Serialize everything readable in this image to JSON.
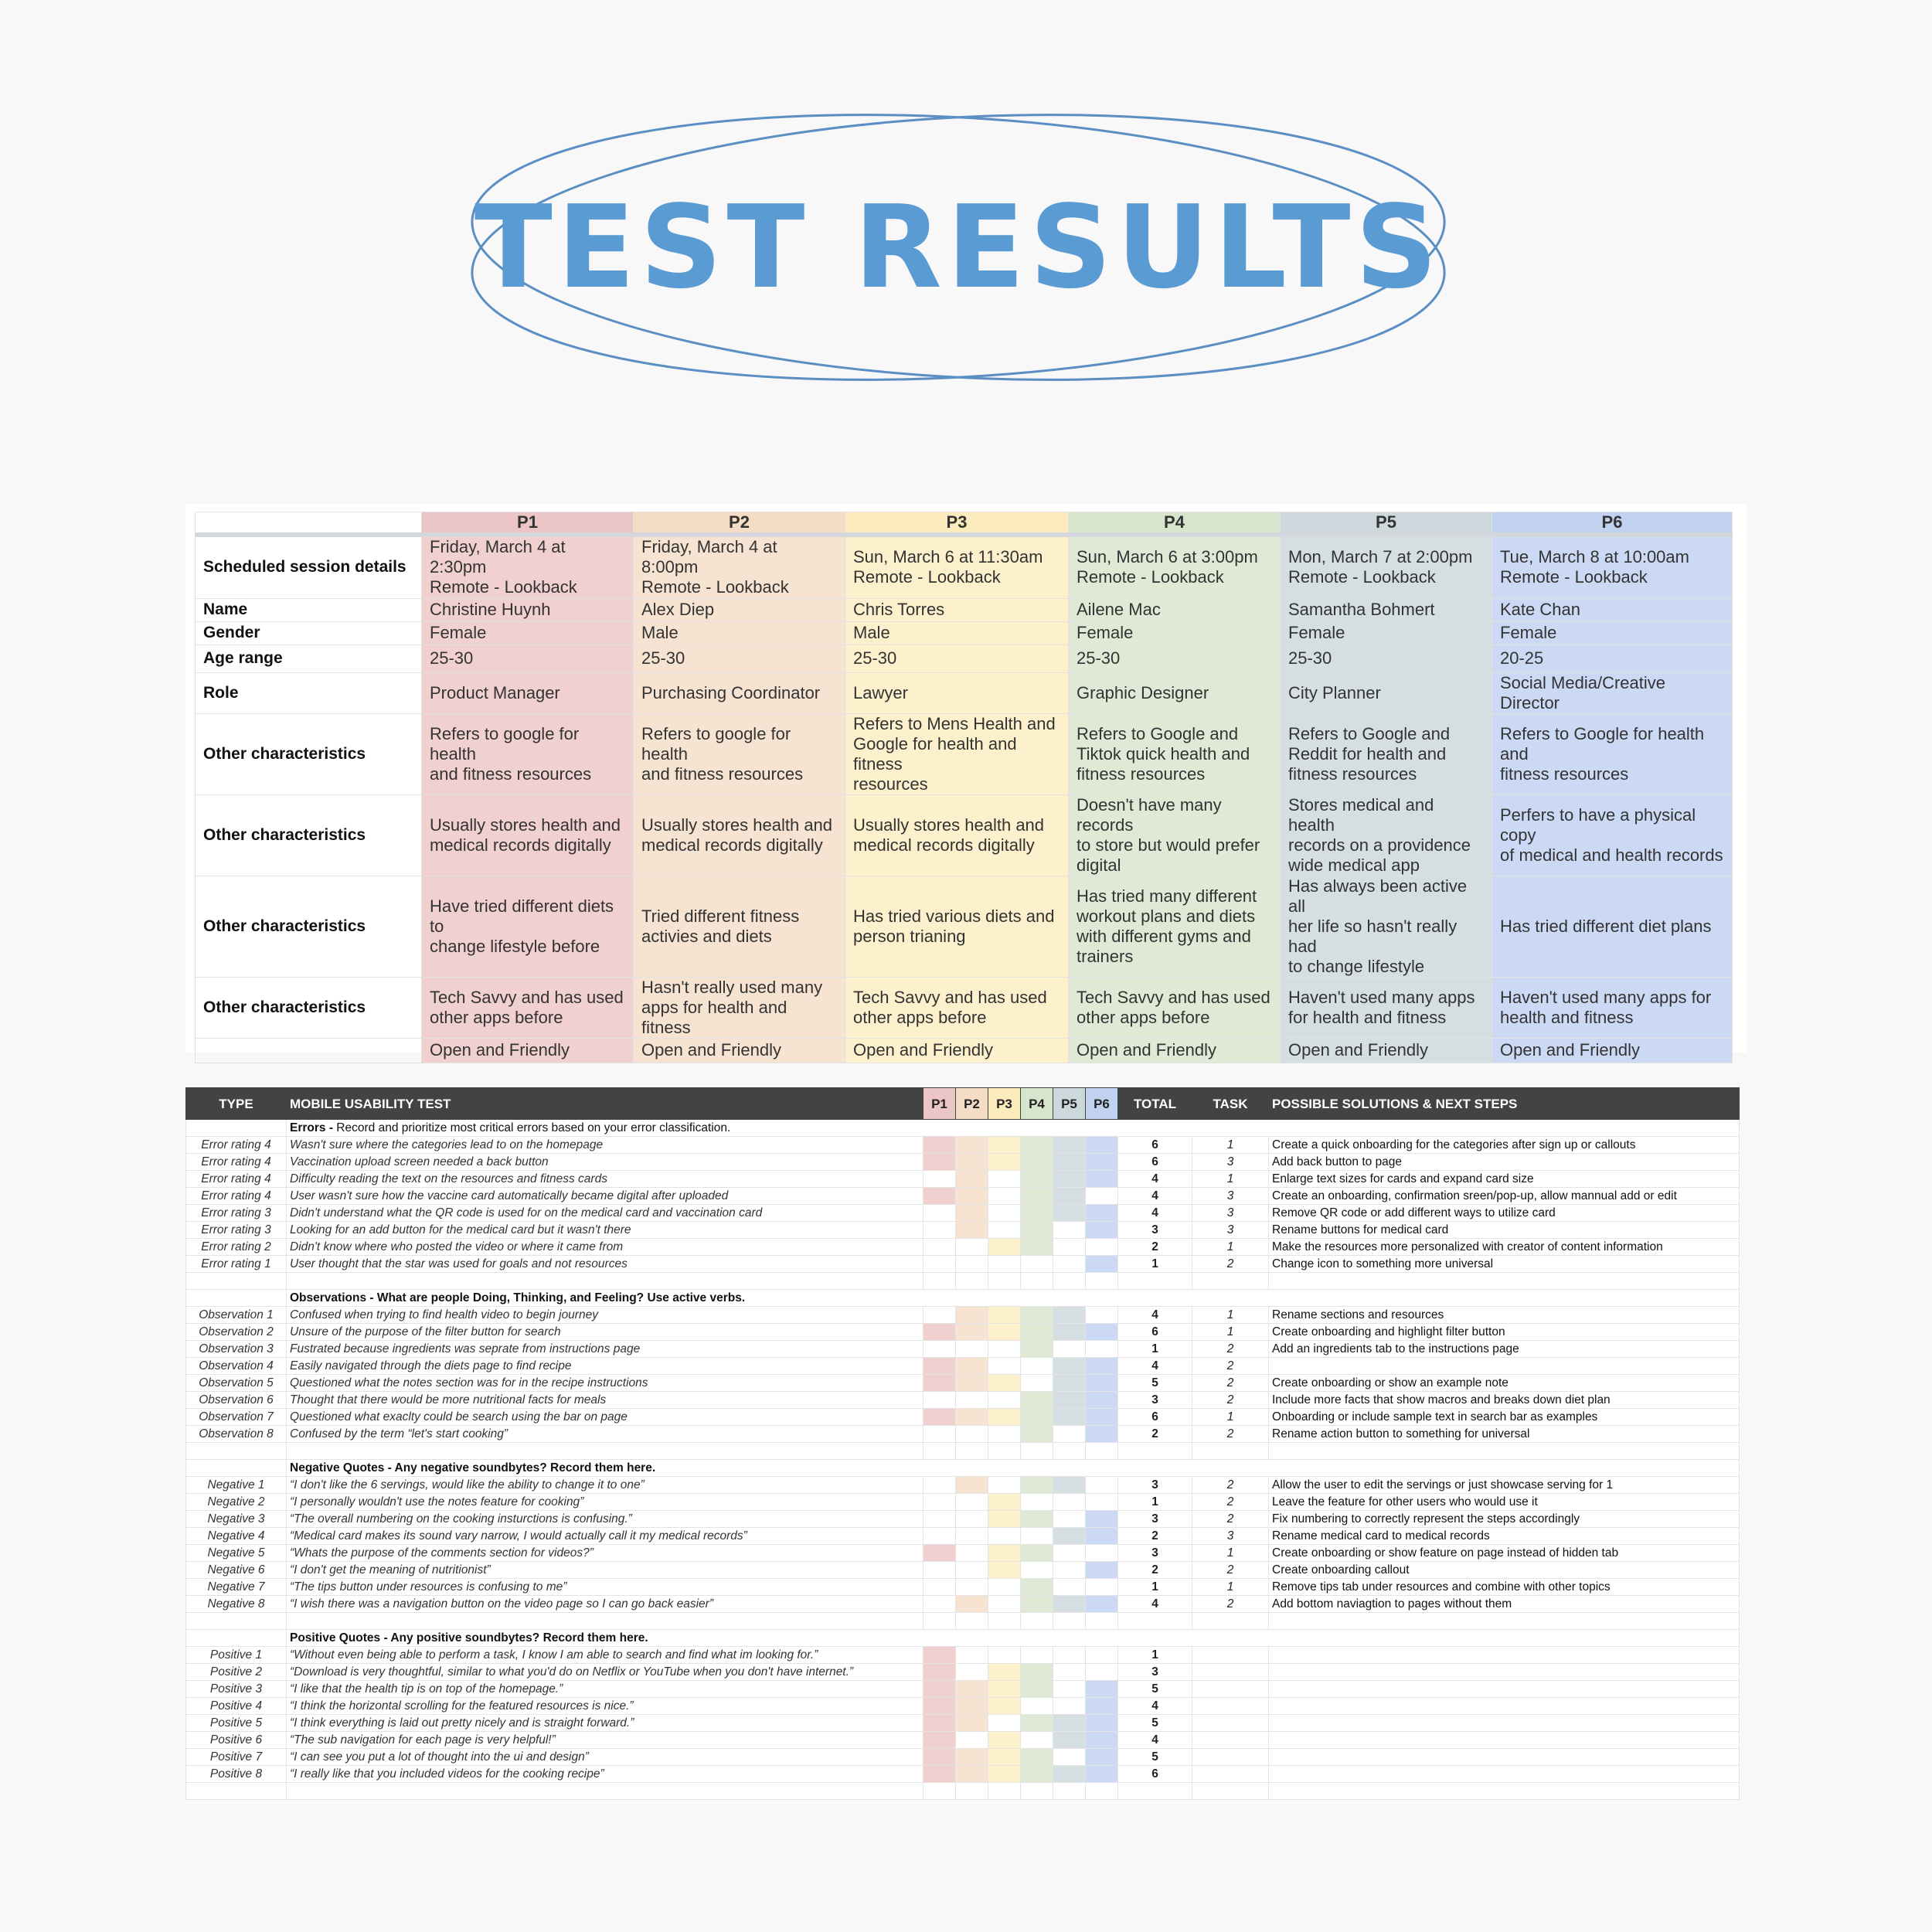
{
  "title": "TEST RESULTS",
  "colors": {
    "title": "#5b9bd3",
    "p1": "#f1d0d0",
    "p2": "#f7e3d1",
    "p3": "#fdf0cc",
    "p4": "#dfe9d6",
    "p5": "#d5dfe2",
    "p6": "#ccd9f4"
  },
  "participants": {
    "headers": [
      "P1",
      "P2",
      "P3",
      "P4",
      "P5",
      "P6"
    ],
    "rows": [
      {
        "label": "Scheduled session details",
        "cells": [
          [
            "Friday, March 4 at 2:30pm",
            "Remote - Lookback"
          ],
          [
            "Friday, March 4 at 8:00pm",
            "Remote - Lookback"
          ],
          [
            "Sun, March 6 at 11:30am",
            "Remote - Lookback"
          ],
          [
            "Sun, March 6  at 3:00pm",
            "Remote - Lookback"
          ],
          [
            "Mon, March 7 at 2:00pm",
            "Remote - Lookback"
          ],
          [
            "Tue, March 8 at 10:00am",
            "Remote - Lookback"
          ]
        ]
      },
      {
        "label": "Name",
        "cells": [
          [
            "Christine Huynh"
          ],
          [
            "Alex Diep"
          ],
          [
            "Chris Torres"
          ],
          [
            "Ailene Mac"
          ],
          [
            "Samantha Bohmert"
          ],
          [
            "Kate Chan"
          ]
        ]
      },
      {
        "label": "Gender",
        "cells": [
          [
            "Female"
          ],
          [
            "Male"
          ],
          [
            "Male"
          ],
          [
            "Female"
          ],
          [
            "Female"
          ],
          [
            "Female"
          ]
        ]
      },
      {
        "label": "Age range",
        "cells": [
          [
            "25-30"
          ],
          [
            "25-30"
          ],
          [
            "25-30"
          ],
          [
            "25-30"
          ],
          [
            "25-30"
          ],
          [
            "20-25"
          ]
        ]
      },
      {
        "label": "Role",
        "cells": [
          [
            "Product Manager"
          ],
          [
            "Purchasing Coordinator"
          ],
          [
            "Lawyer"
          ],
          [
            "Graphic Designer"
          ],
          [
            "City Planner"
          ],
          [
            "Social Media/Creative Director"
          ]
        ]
      },
      {
        "label": "Other characteristics",
        "cells": [
          [
            "Refers to google for health",
            "and fitness resources"
          ],
          [
            "Refers to google for health",
            "and fitness resources"
          ],
          [
            "Refers to Mens Health and",
            "Google for health and fitness",
            "resources"
          ],
          [
            "Refers to Google and",
            "Tiktok quick health and",
            "fitness resources"
          ],
          [
            "Refers to Google and",
            "Reddit for health and",
            "fitness resources"
          ],
          [
            "Refers to Google for health and",
            "fitness resources"
          ]
        ]
      },
      {
        "label": "Other characteristics",
        "cells": [
          [
            "Usually stores health and",
            "medical records digitally"
          ],
          [
            "Usually stores health and",
            "medical records digitally"
          ],
          [
            "Usually stores health and",
            "medical records digitally"
          ],
          [
            "Doesn't have many records",
            "to store but would prefer",
            "digital"
          ],
          [
            "Stores medical and health",
            "records on a providence",
            "wide medical app"
          ],
          [
            "Perfers to have a physical copy",
            "of medical and health records"
          ]
        ]
      },
      {
        "label": "Other characteristics",
        "cells": [
          [
            "Have tried different diets to",
            "change lifestyle before"
          ],
          [
            "Tried different fitness",
            "activies and diets"
          ],
          [
            "Has tried various diets and",
            "person trianing"
          ],
          [
            "Has tried many different",
            "workout plans and diets",
            "with different gyms and",
            "trainers"
          ],
          [
            "Has always been active all",
            "her life so hasn't really had",
            "to change lifestyle"
          ],
          [
            "Has tried different diet plans"
          ]
        ]
      },
      {
        "label": "Other characteristics",
        "cells": [
          [
            "Tech Savvy and has used",
            "other apps before"
          ],
          [
            "Hasn't really used many",
            "apps for health and fitness"
          ],
          [
            "Tech Savvy and has used",
            "other apps before"
          ],
          [
            "Tech Savvy and has used",
            "other apps before"
          ],
          [
            "Haven't used many apps",
            "for health and fitness"
          ],
          [
            "Haven't used many apps for",
            "health and fitness"
          ]
        ]
      },
      {
        "label": "",
        "cells": [
          [
            "Open and Friendly"
          ],
          [
            "Open and Friendly"
          ],
          [
            "Open and Friendly"
          ],
          [
            "Open and Friendly"
          ],
          [
            "Open and Friendly"
          ],
          [
            "Open and Friendly"
          ]
        ]
      }
    ]
  },
  "usability": {
    "headers": {
      "type": "TYPE",
      "test": "MOBILE USABILITY TEST",
      "p": [
        "P1",
        "P2",
        "P3",
        "P4",
        "P5",
        "P6"
      ],
      "total": "TOTAL",
      "task": "TASK",
      "solutions": "POSSIBLE SOLUTIONS & NEXT STEPS"
    },
    "sections": [
      {
        "title": "Errors -",
        "note": " Record and prioritize most critical errors based on your error classification.",
        "rows": [
          {
            "type": "Error rating 4",
            "desc": "Wasn't sure where the categories lead to on the homepage",
            "p": [
              1,
              1,
              1,
              1,
              1,
              1
            ],
            "total": "6",
            "task": "1",
            "sol": "Create a quick onboarding for the categories after sign up or callouts"
          },
          {
            "type": "Error rating 4",
            "desc": "Vaccination upload screen needed a back button",
            "p": [
              1,
              1,
              1,
              1,
              1,
              1
            ],
            "total": "6",
            "task": "3",
            "sol": "Add back button to page"
          },
          {
            "type": "Error rating 4",
            "desc": "Difficulty reading the text on the resources and fitness cards",
            "p": [
              0,
              1,
              0,
              1,
              1,
              1
            ],
            "total": "4",
            "task": "1",
            "sol": "Enlarge text sizes for cards and expand card size"
          },
          {
            "type": "Error rating 4",
            "desc": "User wasn't sure how the vaccine card automatically became digital after uploaded",
            "p": [
              1,
              1,
              0,
              1,
              1,
              0
            ],
            "total": "4",
            "task": "3",
            "sol": "Create an onboarding, confirmation sreen/pop-up, allow mannual add or edit"
          },
          {
            "type": "Error rating 3",
            "desc": "Didn't understand what the QR code is used for on the medical card and vaccination card",
            "p": [
              0,
              1,
              0,
              1,
              1,
              1
            ],
            "total": "4",
            "task": "3",
            "sol": "Remove QR code or add different ways to utilize card"
          },
          {
            "type": "Error rating 3",
            "desc": "Looking for an add button for the medical card but it wasn't there",
            "p": [
              0,
              1,
              0,
              1,
              0,
              1
            ],
            "total": "3",
            "task": "3",
            "sol": "Rename buttons for medical card"
          },
          {
            "type": "Error rating 2",
            "desc": "Didn't know where who posted the video or where it came from",
            "p": [
              0,
              0,
              1,
              1,
              0,
              0
            ],
            "total": "2",
            "task": "1",
            "sol": "Make the resources more personalized with creator of content information"
          },
          {
            "type": "Error rating 1",
            "desc": "User thought that the star was used for goals and not resources",
            "p": [
              0,
              0,
              0,
              0,
              0,
              1
            ],
            "total": "1",
            "task": "2",
            "sol": "Change icon to something more universal"
          }
        ]
      },
      {
        "title": "Observations - What are people Doing, Thinking, and Feeling? Use active verbs.",
        "note": "",
        "rows": [
          {
            "type": "Observation 1",
            "desc": "Confused when trying to find health video to begin journey",
            "p": [
              0,
              1,
              1,
              1,
              1,
              0
            ],
            "total": "4",
            "task": "1",
            "sol": "Rename sections and resources"
          },
          {
            "type": "Observation 2",
            "desc": "Unsure of the purpose of the filter button for search",
            "p": [
              1,
              1,
              1,
              1,
              1,
              1
            ],
            "total": "6",
            "task": "1",
            "sol": "Create onboarding and highlight filter button"
          },
          {
            "type": "Observation 3",
            "desc": "Fustrated because ingredients was seprate from instructions page",
            "p": [
              0,
              0,
              0,
              1,
              0,
              0
            ],
            "total": "1",
            "task": "2",
            "sol": "Add an ingredients tab to the instructions page"
          },
          {
            "type": "Observation 4",
            "desc": "Easily navigated through the diets page to find recipe",
            "p": [
              1,
              1,
              0,
              0,
              1,
              1
            ],
            "total": "4",
            "task": "2",
            "sol": ""
          },
          {
            "type": "Observation 5",
            "desc": "Questioned what the notes section was for in the recipe instructions",
            "p": [
              1,
              1,
              1,
              0,
              1,
              1
            ],
            "total": "5",
            "task": "2",
            "sol": "Create onboarding or show an example note"
          },
          {
            "type": "Observation 6",
            "desc": "Thought that there would be more nutritional facts for meals",
            "p": [
              0,
              0,
              0,
              1,
              1,
              1
            ],
            "total": "3",
            "task": "2",
            "sol": "Include more facts that show macros and breaks down diet plan"
          },
          {
            "type": "Observation 7",
            "desc": "Questioned what exaclty could be search using the bar on page",
            "p": [
              1,
              1,
              1,
              1,
              1,
              1
            ],
            "total": "6",
            "task": "1",
            "sol": "Onboarding or include sample text in search bar as examples"
          },
          {
            "type": "Observation 8",
            "desc": "Confused by the term “let's start cooking”",
            "p": [
              0,
              0,
              0,
              1,
              0,
              1
            ],
            "total": "2",
            "task": "2",
            "sol": "Rename action button to something for universal"
          }
        ]
      },
      {
        "title": "Negative Quotes - Any negative soundbytes? Record them here.",
        "note": "",
        "rows": [
          {
            "type": "Negative 1",
            "desc": "“I don't like the 6 servings, would like the ability to change it to one”",
            "p": [
              0,
              1,
              0,
              1,
              1,
              0
            ],
            "total": "3",
            "task": "2",
            "sol": "Allow the user to edit the servings or just showcase serving for 1"
          },
          {
            "type": "Negative 2",
            "desc": "“I personally wouldn't use the notes feature for cooking”",
            "p": [
              0,
              0,
              1,
              0,
              0,
              0
            ],
            "total": "1",
            "task": "2",
            "sol": "Leave the feature for other users who would use it"
          },
          {
            "type": "Negative 3",
            "desc": "“The overall numbering on the cooking insturctions is confusing.”",
            "p": [
              0,
              0,
              1,
              1,
              0,
              1
            ],
            "total": "3",
            "task": "2",
            "sol": "Fix numbering to correctly represent the steps accordingly"
          },
          {
            "type": "Negative 4",
            "desc": "“Medical card makes its sound vary narrow, I would actually call it my medical records”",
            "p": [
              0,
              0,
              0,
              0,
              1,
              1
            ],
            "total": "2",
            "task": "3",
            "sol": "Rename medical card to medical records"
          },
          {
            "type": "Negative 5",
            "desc": "“Whats the purpose of the comments section for videos?”",
            "p": [
              1,
              0,
              1,
              1,
              0,
              0
            ],
            "total": "3",
            "task": "1",
            "sol": "Create onboarding or show feature on page instead of hidden tab"
          },
          {
            "type": "Negative 6",
            "desc": "“I don't get the meaning of nutritionist”",
            "p": [
              0,
              0,
              1,
              0,
              0,
              1
            ],
            "total": "2",
            "task": "2",
            "sol": "Create onboarding callout"
          },
          {
            "type": "Negative 7",
            "desc": "“The tips button under resources is confusing to me”",
            "p": [
              0,
              0,
              0,
              1,
              0,
              0
            ],
            "total": "1",
            "task": "1",
            "sol": "Remove tips tab under resources and combine with other topics"
          },
          {
            "type": "Negative 8",
            "desc": "“I wish there was a navigation button on the video page so I can go back easier”",
            "p": [
              0,
              1,
              0,
              1,
              1,
              1
            ],
            "total": "4",
            "task": "2",
            "sol": "Add bottom naviagtion to pages without them"
          }
        ]
      },
      {
        "title": "Positive Quotes - Any positive soundbytes? Record them here.",
        "note": "",
        "rows": [
          {
            "type": "Positive 1",
            "desc": "“Without even being able to perform a task, I know I am able to search and find what im looking for.”",
            "p": [
              1,
              0,
              0,
              0,
              0,
              0
            ],
            "total": "1",
            "task": "",
            "sol": ""
          },
          {
            "type": "Positive 2",
            "desc": "“Download is very thoughtful, similar to what you'd do on Netflix or YouTube when you don't have internet.”",
            "p": [
              1,
              0,
              1,
              1,
              0,
              0
            ],
            "total": "3",
            "task": "",
            "sol": ""
          },
          {
            "type": "Positive 3",
            "desc": "“I like that the health tip is on top of the homepage.”",
            "p": [
              1,
              1,
              1,
              1,
              0,
              1
            ],
            "total": "5",
            "task": "",
            "sol": ""
          },
          {
            "type": "Positive 4",
            "desc": "“I think the horizontal scrolling for the featured resources is nice.”",
            "p": [
              1,
              1,
              1,
              0,
              0,
              1
            ],
            "total": "4",
            "task": "",
            "sol": ""
          },
          {
            "type": "Positive 5",
            "desc": "“I think everything is laid out pretty nicely and is straight forward.”",
            "p": [
              1,
              1,
              0,
              1,
              1,
              1
            ],
            "total": "5",
            "task": "",
            "sol": ""
          },
          {
            "type": "Positive 6",
            "desc": "“The sub navigation for each page is very helpful!”",
            "p": [
              1,
              0,
              1,
              0,
              1,
              1
            ],
            "total": "4",
            "task": "",
            "sol": ""
          },
          {
            "type": "Positive 7",
            "desc": "“I can see you put a lot of thought into the ui and design”",
            "p": [
              1,
              1,
              1,
              1,
              0,
              1
            ],
            "total": "5",
            "task": "",
            "sol": ""
          },
          {
            "type": "Positive 8",
            "desc": "“I really like that you included videos for the cooking recipe”",
            "p": [
              1,
              1,
              1,
              1,
              1,
              1
            ],
            "total": "6",
            "task": "",
            "sol": ""
          }
        ]
      }
    ]
  }
}
